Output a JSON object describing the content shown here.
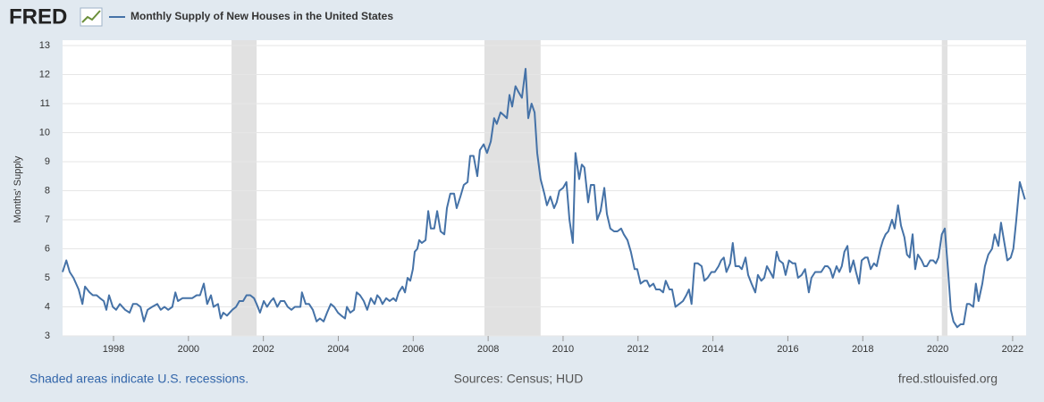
{
  "chart_data": {
    "type": "line",
    "logo": "FRED",
    "y_label": "Months' Supply",
    "recession_note": "Shaded areas indicate U.S. recessions.",
    "source": "Sources: Census; HUD",
    "site": "fred.stlouisfed.org",
    "xlim": [
      1996.64,
      2022.36
    ],
    "ylim": [
      3,
      13
    ],
    "xticks": [
      1998,
      2000,
      2002,
      2004,
      2006,
      2008,
      2010,
      2012,
      2014,
      2016,
      2018,
      2020,
      2022
    ],
    "yticks": [
      3,
      4,
      5,
      6,
      7,
      8,
      9,
      10,
      11,
      12,
      13
    ],
    "grid": true,
    "recessions": [
      [
        2001.15,
        2001.82
      ],
      [
        2007.9,
        2009.4
      ],
      [
        2020.11,
        2020.26
      ]
    ],
    "recession_color": "#e1e1e1",
    "x": [
      1996.64,
      1996.74,
      1996.83,
      1996.93,
      1997.07,
      1997.17,
      1997.24,
      1997.36,
      1997.45,
      1997.55,
      1997.64,
      1997.74,
      1997.81,
      1997.88,
      1997.98,
      1998.07,
      1998.17,
      1998.31,
      1998.43,
      1998.52,
      1998.62,
      1998.72,
      1998.81,
      1998.91,
      1999.03,
      1999.17,
      1999.26,
      1999.36,
      1999.46,
      1999.57,
      1999.65,
      1999.72,
      1999.84,
      1999.98,
      2000.1,
      2000.22,
      2000.31,
      2000.41,
      2000.5,
      2000.6,
      2000.67,
      2000.79,
      2000.86,
      2000.93,
      2001.03,
      2001.17,
      2001.27,
      2001.36,
      2001.46,
      2001.55,
      2001.65,
      2001.75,
      2001.82,
      2001.91,
      2002.01,
      2002.1,
      2002.2,
      2002.27,
      2002.37,
      2002.46,
      2002.56,
      2002.65,
      2002.75,
      2002.84,
      2002.99,
      2003.03,
      2003.13,
      2003.22,
      2003.32,
      2003.42,
      2003.51,
      2003.61,
      2003.7,
      2003.8,
      2003.89,
      2003.99,
      2004.08,
      2004.18,
      2004.23,
      2004.32,
      2004.42,
      2004.49,
      2004.58,
      2004.68,
      2004.77,
      2004.87,
      2004.97,
      2005.04,
      2005.11,
      2005.18,
      2005.28,
      2005.37,
      2005.47,
      2005.54,
      2005.61,
      2005.71,
      2005.78,
      2005.85,
      2005.92,
      2005.99,
      2006.04,
      2006.11,
      2006.16,
      2006.23,
      2006.33,
      2006.4,
      2006.47,
      2006.56,
      2006.64,
      2006.73,
      2006.83,
      2006.9,
      2006.99,
      2007.09,
      2007.16,
      2007.26,
      2007.35,
      2007.45,
      2007.52,
      2007.61,
      2007.71,
      2007.78,
      2007.88,
      2007.97,
      2008.07,
      2008.16,
      2008.23,
      2008.33,
      2008.42,
      2008.5,
      2008.57,
      2008.64,
      2008.73,
      2008.81,
      2008.9,
      2009.0,
      2009.07,
      2009.16,
      2009.24,
      2009.31,
      2009.4,
      2009.5,
      2009.57,
      2009.66,
      2009.76,
      2009.83,
      2009.9,
      2010.0,
      2010.09,
      2010.17,
      2010.26,
      2010.33,
      2010.43,
      2010.5,
      2010.57,
      2010.67,
      2010.74,
      2010.83,
      2010.91,
      2011.0,
      2011.1,
      2011.17,
      2011.26,
      2011.36,
      2011.45,
      2011.55,
      2011.62,
      2011.72,
      2011.81,
      2011.91,
      2011.98,
      2012.07,
      2012.17,
      2012.24,
      2012.31,
      2012.41,
      2012.48,
      2012.58,
      2012.67,
      2012.74,
      2012.84,
      2012.91,
      2013.0,
      2013.1,
      2013.2,
      2013.29,
      2013.36,
      2013.43,
      2013.51,
      2013.6,
      2013.7,
      2013.77,
      2013.86,
      2013.96,
      2014.05,
      2014.15,
      2014.22,
      2014.29,
      2014.36,
      2014.46,
      2014.53,
      2014.6,
      2014.7,
      2014.77,
      2014.87,
      2014.94,
      2015.03,
      2015.13,
      2015.2,
      2015.29,
      2015.37,
      2015.44,
      2015.53,
      2015.61,
      2015.7,
      2015.77,
      2015.87,
      2015.94,
      2016.03,
      2016.13,
      2016.2,
      2016.27,
      2016.37,
      2016.46,
      2016.56,
      2016.63,
      2016.73,
      2016.82,
      2016.89,
      2016.99,
      2017.06,
      2017.13,
      2017.2,
      2017.3,
      2017.37,
      2017.44,
      2017.51,
      2017.59,
      2017.66,
      2017.75,
      2017.82,
      2017.9,
      2017.97,
      2018.06,
      2018.13,
      2018.21,
      2018.3,
      2018.37,
      2018.47,
      2018.54,
      2018.61,
      2018.68,
      2018.78,
      2018.85,
      2018.94,
      2019.02,
      2019.11,
      2019.18,
      2019.25,
      2019.33,
      2019.4,
      2019.47,
      2019.57,
      2019.64,
      2019.71,
      2019.8,
      2019.88,
      2019.95,
      2020.02,
      2020.11,
      2020.19,
      2020.28,
      2020.35,
      2020.42,
      2020.52,
      2020.61,
      2020.69,
      2020.78,
      2020.85,
      2020.95,
      2021.02,
      2021.09,
      2021.19,
      2021.26,
      2021.35,
      2021.45,
      2021.52,
      2021.62,
      2021.69,
      2021.78,
      2021.86,
      2021.95,
      2022.02,
      2022.09,
      2022.19,
      2022.26,
      2022.33
    ],
    "series": [
      {
        "name": "Monthly Supply of New Houses in the United States",
        "color": "#4572a7",
        "values": [
          5.2,
          5.6,
          5.2,
          5.0,
          4.6,
          4.1,
          4.7,
          4.5,
          4.4,
          4.4,
          4.3,
          4.2,
          3.9,
          4.4,
          4.0,
          3.9,
          4.1,
          3.9,
          3.8,
          4.1,
          4.1,
          4.0,
          3.5,
          3.9,
          4.0,
          4.1,
          3.9,
          4.0,
          3.9,
          4.0,
          4.5,
          4.2,
          4.3,
          4.3,
          4.3,
          4.4,
          4.4,
          4.8,
          4.1,
          4.4,
          4.0,
          4.1,
          3.6,
          3.8,
          3.7,
          3.9,
          4.0,
          4.2,
          4.2,
          4.4,
          4.4,
          4.3,
          4.1,
          3.8,
          4.2,
          4.0,
          4.2,
          4.3,
          4.0,
          4.2,
          4.2,
          4.0,
          3.9,
          4.0,
          4.0,
          4.5,
          4.1,
          4.1,
          3.9,
          3.5,
          3.6,
          3.5,
          3.8,
          4.1,
          4.0,
          3.8,
          3.7,
          3.6,
          4.0,
          3.8,
          3.9,
          4.5,
          4.4,
          4.2,
          3.9,
          4.3,
          4.1,
          4.4,
          4.3,
          4.1,
          4.3,
          4.2,
          4.3,
          4.2,
          4.5,
          4.7,
          4.5,
          5.0,
          4.9,
          5.3,
          5.9,
          6.0,
          6.3,
          6.2,
          6.3,
          7.3,
          6.7,
          6.7,
          7.3,
          6.6,
          6.5,
          7.4,
          7.9,
          7.9,
          7.4,
          7.8,
          8.2,
          8.3,
          9.2,
          9.2,
          8.5,
          9.4,
          9.6,
          9.3,
          9.7,
          10.5,
          10.3,
          10.7,
          10.6,
          10.5,
          11.3,
          10.9,
          11.6,
          11.4,
          11.2,
          12.2,
          10.5,
          11.0,
          10.7,
          9.3,
          8.4,
          7.9,
          7.5,
          7.8,
          7.4,
          7.6,
          8.0,
          8.1,
          8.3,
          7.0,
          6.2,
          9.3,
          8.4,
          8.9,
          8.8,
          7.6,
          8.2,
          8.2,
          7.0,
          7.3,
          8.1,
          7.2,
          6.7,
          6.6,
          6.6,
          6.7,
          6.5,
          6.3,
          5.9,
          5.3,
          5.3,
          4.8,
          4.9,
          4.9,
          4.7,
          4.8,
          4.6,
          4.6,
          4.5,
          4.9,
          4.6,
          4.6,
          4.0,
          4.1,
          4.2,
          4.4,
          4.6,
          4.1,
          5.5,
          5.5,
          5.4,
          4.9,
          5.0,
          5.2,
          5.2,
          5.4,
          5.6,
          5.7,
          5.2,
          5.5,
          6.2,
          5.4,
          5.4,
          5.3,
          5.7,
          5.1,
          4.8,
          4.5,
          5.1,
          4.9,
          5.0,
          5.4,
          5.2,
          5.0,
          5.9,
          5.6,
          5.5,
          5.1,
          5.6,
          5.5,
          5.5,
          5.0,
          5.1,
          5.3,
          4.5,
          5.0,
          5.2,
          5.2,
          5.2,
          5.4,
          5.4,
          5.3,
          5.0,
          5.4,
          5.2,
          5.4,
          5.9,
          6.1,
          5.2,
          5.6,
          5.2,
          4.8,
          5.6,
          5.7,
          5.7,
          5.3,
          5.5,
          5.4,
          6.0,
          6.3,
          6.5,
          6.6,
          7.0,
          6.7,
          7.5,
          6.8,
          6.4,
          5.8,
          5.7,
          6.5,
          5.3,
          5.8,
          5.6,
          5.4,
          5.4,
          5.6,
          5.6,
          5.5,
          5.7,
          6.5,
          6.7,
          5.2,
          3.9,
          3.5,
          3.3,
          3.4,
          3.4,
          4.1,
          4.1,
          4.0,
          4.8,
          4.2,
          4.8,
          5.4,
          5.8,
          6.0,
          6.5,
          6.1,
          6.9,
          6.2,
          5.6,
          5.7,
          6.0,
          6.9,
          8.3,
          8.0,
          7.7
        ]
      }
    ]
  }
}
